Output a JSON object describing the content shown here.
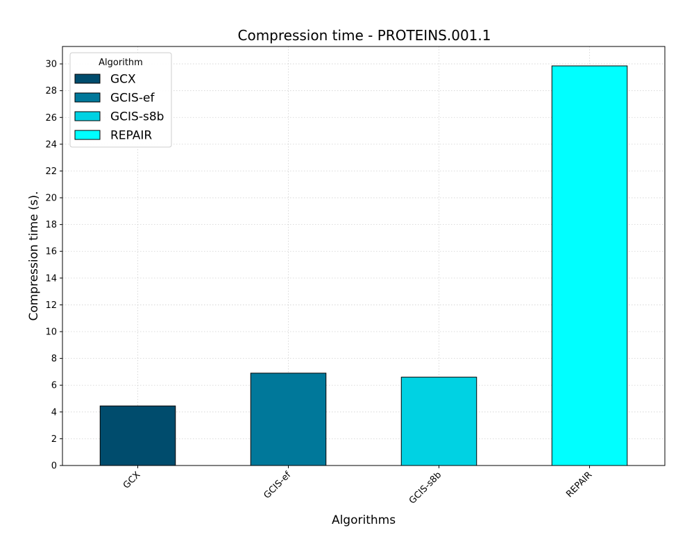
{
  "chart_data": {
    "type": "bar",
    "title": "Compression time -  PROTEINS.001.1",
    "xlabel": "Algorithms",
    "ylabel": "Compression time (s).",
    "categories": [
      "GCX",
      "GCIS-ef",
      "GCIS-s8b",
      "REPAIR"
    ],
    "values": [
      4.45,
      6.9,
      6.6,
      29.85
    ],
    "ylim": [
      0,
      31.3
    ],
    "yticks": [
      0,
      2,
      4,
      6,
      8,
      10,
      12,
      14,
      16,
      18,
      20,
      22,
      24,
      26,
      28,
      30
    ],
    "grid": true,
    "legend": {
      "title": "Algorithm",
      "placement": "top-left",
      "entries": [
        "GCX",
        "GCIS-ef",
        "GCIS-s8b",
        "REPAIR"
      ]
    },
    "colors": [
      "#004c6d",
      "#00789a",
      "#00d2e3",
      "#00ffff"
    ]
  }
}
